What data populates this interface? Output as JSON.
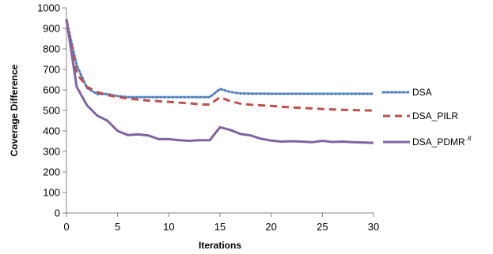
{
  "chart_data": {
    "type": "line",
    "xlabel": "Iterations",
    "ylabel": "Coverage Difference",
    "xlim": [
      0,
      30
    ],
    "ylim": [
      0,
      1000
    ],
    "xticks": [
      0,
      5,
      10,
      15,
      20,
      25,
      30
    ],
    "yticks": [
      0,
      100,
      200,
      300,
      400,
      500,
      600,
      700,
      800,
      900,
      1000
    ],
    "grid": false,
    "legend_position": "right",
    "x": [
      0,
      1,
      2,
      3,
      4,
      5,
      6,
      7,
      8,
      9,
      10,
      11,
      12,
      13,
      14,
      15,
      16,
      17,
      18,
      19,
      20,
      21,
      22,
      23,
      24,
      25,
      26,
      27,
      28,
      29,
      30
    ],
    "series": [
      {
        "name": "DSA",
        "label_main": "DSA",
        "label_sup": "",
        "color": "#4f81bd",
        "style": "dotted",
        "values": [
          940,
          720,
          610,
          580,
          580,
          570,
          565,
          565,
          565,
          565,
          565,
          565,
          565,
          565,
          565,
          605,
          590,
          583,
          582,
          582,
          581,
          581,
          581,
          581,
          581,
          581,
          581,
          581,
          581,
          581,
          581
        ]
      },
      {
        "name": "DSA_PILR",
        "label_main": "DSA_PILR",
        "label_sup": "",
        "color": "#c0504d",
        "style": "dashed",
        "values": [
          945,
          680,
          615,
          590,
          575,
          565,
          558,
          553,
          548,
          545,
          542,
          538,
          535,
          530,
          528,
          565,
          545,
          533,
          528,
          525,
          522,
          518,
          515,
          512,
          510,
          507,
          505,
          503,
          502,
          500,
          500
        ]
      },
      {
        "name": "DSA_PDMR R",
        "label_main": "DSA_PDMR",
        "label_sup": "R",
        "color": "#8064a2",
        "style": "solid",
        "values": [
          945,
          615,
          525,
          475,
          450,
          400,
          380,
          383,
          378,
          360,
          360,
          355,
          352,
          355,
          355,
          418,
          405,
          385,
          378,
          362,
          353,
          348,
          350,
          348,
          345,
          352,
          346,
          348,
          345,
          344,
          342
        ]
      }
    ]
  }
}
